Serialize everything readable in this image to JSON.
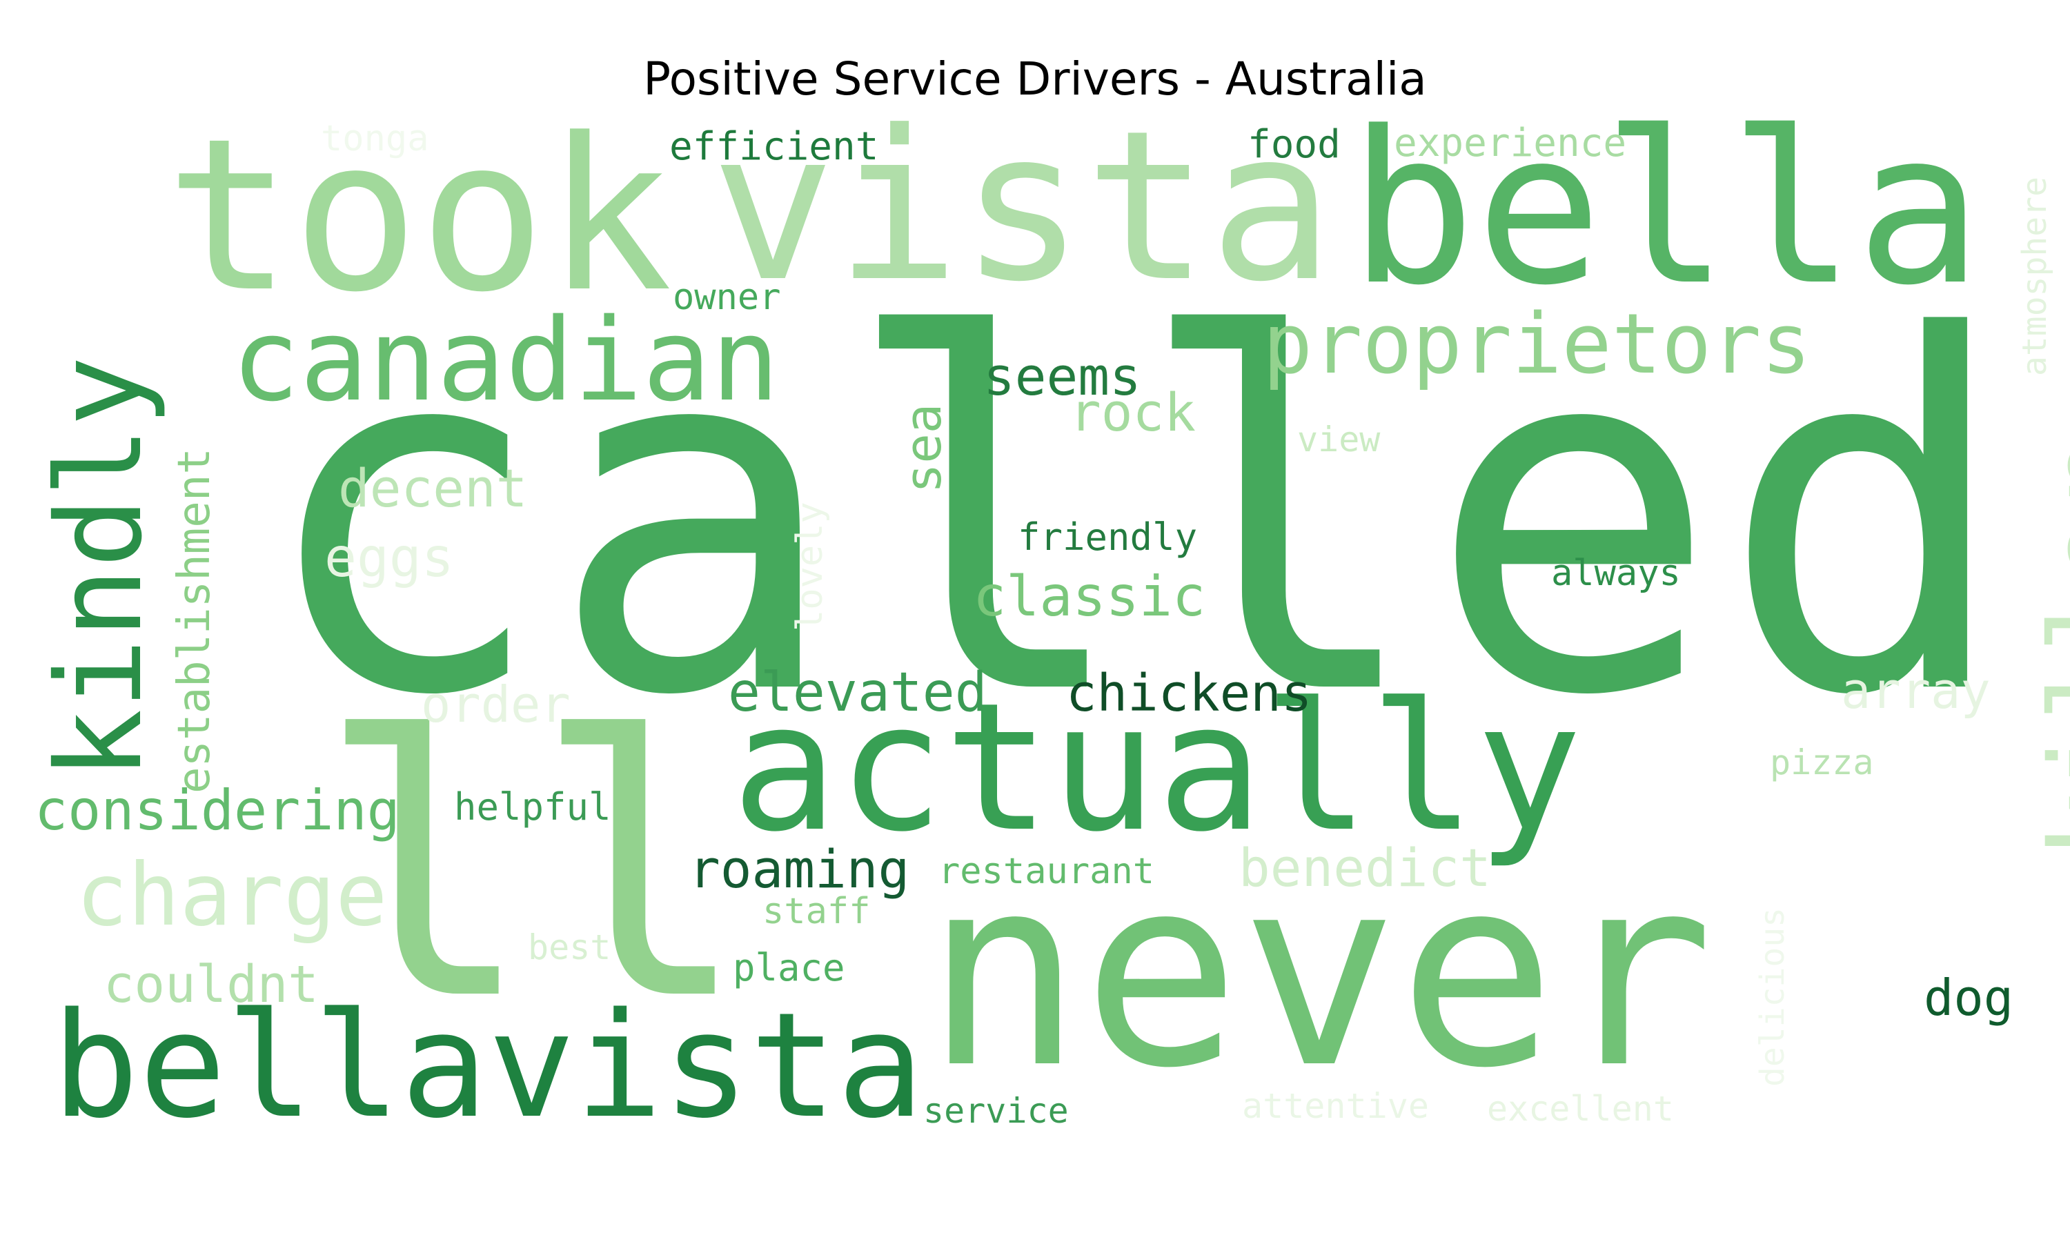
{
  "title": "Positive Service Drivers - Australia",
  "palette": "Greens",
  "words": [
    {
      "text": "called",
      "color": "#45a95c"
    },
    {
      "text": "never",
      "color": "#71c276"
    },
    {
      "text": "ll",
      "color": "#93d28e"
    },
    {
      "text": "actually",
      "color": "#38a054"
    },
    {
      "text": "took",
      "color": "#a1d99b"
    },
    {
      "text": "vista",
      "color": "#b0dea9"
    },
    {
      "text": "bella",
      "color": "#56b466"
    },
    {
      "text": "bellavista",
      "color": "#1e8240"
    },
    {
      "text": "canadian",
      "color": "#67bd6f"
    },
    {
      "text": "kindly",
      "color": "#2a8f48"
    },
    {
      "text": "killer",
      "color": "#cbebc3"
    },
    {
      "text": "proprietors",
      "color": "#93d28e"
    },
    {
      "text": "charge",
      "color": "#d2eecb"
    },
    {
      "text": "considering",
      "color": "#62bb6d"
    },
    {
      "text": "establishment",
      "color": "#8ccf87"
    },
    {
      "text": "elevated",
      "color": "#3b9b55"
    },
    {
      "text": "chickens",
      "color": "#0f4d27"
    },
    {
      "text": "classic",
      "color": "#7ac77b"
    },
    {
      "text": "roaming",
      "color": "#145a32"
    },
    {
      "text": "decent",
      "color": "#bde5b6"
    },
    {
      "text": "couldnt",
      "color": "#b3e0ac"
    },
    {
      "text": "benedict",
      "color": "#d4eecd"
    },
    {
      "text": "seems",
      "color": "#237b3f"
    },
    {
      "text": "rock",
      "color": "#a5db9f"
    },
    {
      "text": "sea",
      "color": "#7ac77b"
    },
    {
      "text": "eggs",
      "color": "#e8f5e3"
    },
    {
      "text": "order",
      "color": "#e6f4e1"
    },
    {
      "text": "array",
      "color": "#e6f4e1"
    },
    {
      "text": "dog",
      "color": "#0f5b2d"
    },
    {
      "text": "efficient",
      "color": "#1e7a3c"
    },
    {
      "text": "food",
      "color": "#237b3f"
    },
    {
      "text": "experience",
      "color": "#a8dca2"
    },
    {
      "text": "tonga",
      "color": "#f1f9ee"
    },
    {
      "text": "owner",
      "color": "#45a95c"
    },
    {
      "text": "atmosphere",
      "color": "#e3f3de"
    },
    {
      "text": "view",
      "color": "#cbebc3"
    },
    {
      "text": "friendly",
      "color": "#237b3f"
    },
    {
      "text": "always",
      "color": "#2d8f4a"
    },
    {
      "text": "lovely",
      "color": "#edf7e9"
    },
    {
      "text": "helpful",
      "color": "#3b9b55"
    },
    {
      "text": "restaurant",
      "color": "#62bb6d"
    },
    {
      "text": "staff",
      "color": "#93d28e"
    },
    {
      "text": "pizza",
      "color": "#b9e3b2"
    },
    {
      "text": "best",
      "color": "#d8f0d2"
    },
    {
      "text": "place",
      "color": "#4fb062"
    },
    {
      "text": "delicious",
      "color": "#eff8ec"
    },
    {
      "text": "service",
      "color": "#3b9b55"
    },
    {
      "text": "attentive",
      "color": "#eaf6e6"
    },
    {
      "text": "excellent",
      "color": "#e8f5e3"
    }
  ]
}
